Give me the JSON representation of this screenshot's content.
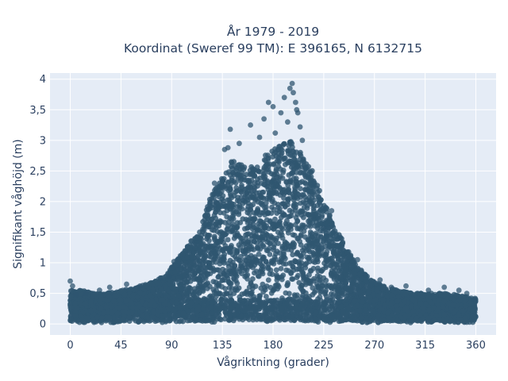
{
  "chart_data": {
    "type": "scatter",
    "title_lines": [
      "År 1979 - 2019",
      "Koordinat (Sweref 99 TM): E 396165, N 6132715"
    ],
    "xlabel": "Vågriktning (grader)",
    "ylabel": "Signifikant våghöjd (m)",
    "xlim": [
      -18,
      378
    ],
    "ylim": [
      -0.18,
      4.1
    ],
    "x_ticks": [
      0,
      45,
      90,
      135,
      180,
      225,
      270,
      315,
      360
    ],
    "y_ticks": [
      0,
      0.5,
      1,
      1.5,
      2,
      2.5,
      3,
      3.5,
      4
    ],
    "y_tick_labels": [
      "0",
      "0,5",
      "1",
      "1,5",
      "2",
      "2,5",
      "3",
      "3,5",
      "4"
    ],
    "grid": true,
    "background": "#e5ecf6",
    "marker_color": "#2f5670",
    "envelope_upper": [
      [
        0,
        0.55
      ],
      [
        10,
        0.55
      ],
      [
        20,
        0.5
      ],
      [
        30,
        0.5
      ],
      [
        45,
        0.55
      ],
      [
        60,
        0.6
      ],
      [
        75,
        0.7
      ],
      [
        85,
        0.8
      ],
      [
        95,
        1.05
      ],
      [
        105,
        1.3
      ],
      [
        115,
        1.55
      ],
      [
        125,
        2.1
      ],
      [
        135,
        2.45
      ],
      [
        145,
        2.7
      ],
      [
        155,
        2.6
      ],
      [
        165,
        2.55
      ],
      [
        175,
        2.8
      ],
      [
        185,
        2.9
      ],
      [
        195,
        3.0
      ],
      [
        205,
        2.8
      ],
      [
        215,
        2.5
      ],
      [
        225,
        2.0
      ],
      [
        235,
        1.6
      ],
      [
        245,
        1.25
      ],
      [
        255,
        0.95
      ],
      [
        265,
        0.75
      ],
      [
        275,
        0.65
      ],
      [
        290,
        0.55
      ],
      [
        305,
        0.5
      ],
      [
        320,
        0.5
      ],
      [
        335,
        0.5
      ],
      [
        350,
        0.45
      ],
      [
        360,
        0.42
      ]
    ],
    "outliers": [
      [
        0,
        0.7
      ],
      [
        2,
        0.62
      ],
      [
        5,
        0.48
      ],
      [
        14,
        0.5
      ],
      [
        26,
        0.55
      ],
      [
        35,
        0.6
      ],
      [
        50,
        0.65
      ],
      [
        62,
        0.62
      ],
      [
        80,
        0.75
      ],
      [
        88,
        0.78
      ],
      [
        92,
        1.02
      ],
      [
        110,
        1.3
      ],
      [
        128,
        2.3
      ],
      [
        137,
        2.85
      ],
      [
        140,
        2.88
      ],
      [
        142,
        3.18
      ],
      [
        150,
        2.95
      ],
      [
        160,
        3.25
      ],
      [
        168,
        3.05
      ],
      [
        172,
        3.35
      ],
      [
        176,
        3.62
      ],
      [
        180,
        3.55
      ],
      [
        182,
        3.12
      ],
      [
        187,
        3.45
      ],
      [
        190,
        3.7
      ],
      [
        193,
        3.3
      ],
      [
        195,
        3.85
      ],
      [
        197,
        3.93
      ],
      [
        198,
        3.78
      ],
      [
        200,
        3.62
      ],
      [
        201,
        3.5
      ],
      [
        202,
        3.45
      ],
      [
        204,
        3.22
      ],
      [
        206,
        3.0
      ],
      [
        210,
        2.55
      ],
      [
        216,
        2.3
      ],
      [
        232,
        1.85
      ],
      [
        240,
        1.4
      ],
      [
        255,
        1.05
      ],
      [
        262,
        0.8
      ],
      [
        275,
        0.72
      ],
      [
        285,
        0.6
      ],
      [
        298,
        0.62
      ],
      [
        318,
        0.55
      ],
      [
        332,
        0.6
      ],
      [
        345,
        0.55
      ],
      [
        352,
        0.5
      ],
      [
        358,
        0.4
      ]
    ]
  }
}
